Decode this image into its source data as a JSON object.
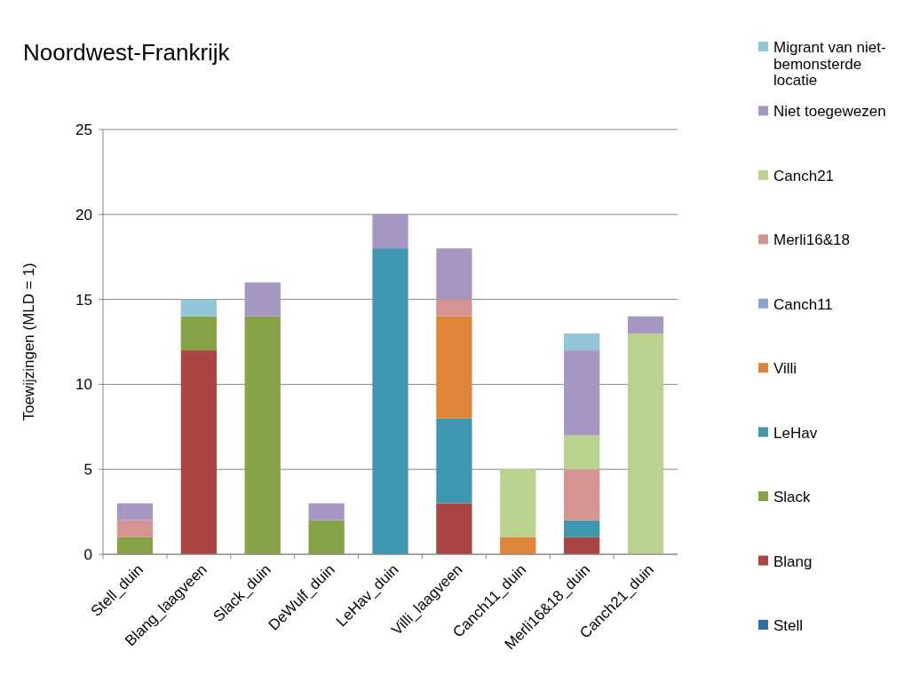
{
  "chart_data": {
    "type": "bar",
    "title": "Noordwest-Frankrijk",
    "ylabel": "Toewijzingen  (MLD = 1)",
    "stacked": true,
    "categories": [
      "Stell_duin",
      "Blang_laagveen",
      "Slack_duin",
      "DeWulf_duin",
      "LeHav_duin",
      "Villi_laagveen",
      "Canch11_duin",
      "Merli16&18_duin",
      "Canch21_duin"
    ],
    "series": [
      {
        "name": "Stell",
        "color": "#2f6ea8",
        "values": [
          0,
          0,
          0,
          0,
          0,
          0,
          0,
          0,
          0
        ]
      },
      {
        "name": "Blang",
        "color": "#a94644",
        "values": [
          0,
          12,
          0,
          0,
          0,
          3,
          0,
          1,
          0
        ]
      },
      {
        "name": "Slack",
        "color": "#86a146",
        "values": [
          1,
          2,
          14,
          2,
          0,
          0,
          0,
          0,
          0
        ]
      },
      {
        "name": "LeHav",
        "color": "#4097b0",
        "values": [
          0,
          0,
          0,
          0,
          18,
          5,
          0,
          1,
          0
        ]
      },
      {
        "name": "Villi",
        "color": "#de853a",
        "values": [
          0,
          0,
          0,
          0,
          0,
          6,
          1,
          0,
          0
        ]
      },
      {
        "name": "Canch11",
        "color": "#8ba5d2",
        "values": [
          0,
          0,
          0,
          0,
          0,
          0,
          0,
          0,
          0
        ]
      },
      {
        "name": "Merli16&18",
        "color": "#d59392",
        "values": [
          1,
          0,
          0,
          0,
          0,
          1,
          0,
          3,
          0
        ]
      },
      {
        "name": "Canch21",
        "color": "#bad190",
        "values": [
          0,
          0,
          0,
          0,
          0,
          0,
          4,
          2,
          13
        ]
      },
      {
        "name": "Niet toegewezen",
        "color": "#a597c2",
        "values": [
          1,
          0,
          2,
          1,
          2,
          3,
          0,
          5,
          1
        ]
      },
      {
        "name": "Migrant van niet-bemonsterde locatie",
        "color": "#93c5d8",
        "values": [
          0,
          1,
          0,
          0,
          0,
          0,
          0,
          1,
          0
        ]
      }
    ],
    "ylim": [
      0,
      25
    ],
    "yticks": [
      0,
      5,
      10,
      15,
      20,
      25
    ],
    "grid": "y",
    "legend": "right"
  }
}
